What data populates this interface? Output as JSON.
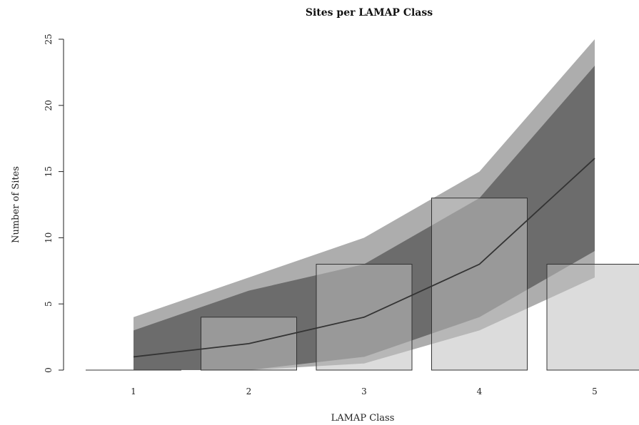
{
  "chart_data": {
    "type": "bar",
    "title": "Sites per LAMAP Class",
    "xlabel": "LAMAP Class",
    "ylabel": "Number of Sites",
    "categories": [
      "1",
      "2",
      "3",
      "4",
      "5"
    ],
    "ylim": [
      0,
      25
    ],
    "y_ticks": [
      "0",
      "5",
      "10",
      "15",
      "20",
      "25"
    ],
    "bars": {
      "values": [
        0,
        4,
        8,
        13,
        8
      ],
      "fill": "#c0c0c0",
      "edge": "#333333"
    },
    "expected_line": {
      "values": [
        1,
        2,
        4,
        8,
        16
      ],
      "color": "#333333"
    },
    "bands": [
      {
        "lower": [
          0,
          0,
          0.5,
          3,
          7
        ],
        "upper": [
          4,
          7,
          10,
          15,
          25
        ],
        "color": "#6a6a6a",
        "opacity": 0.55
      },
      {
        "lower": [
          0,
          0,
          1,
          4,
          9
        ],
        "upper": [
          3,
          6,
          8,
          13,
          23
        ],
        "color": "#4a4a4a",
        "opacity": 0.65
      }
    ],
    "grid": false,
    "legend": "none"
  }
}
